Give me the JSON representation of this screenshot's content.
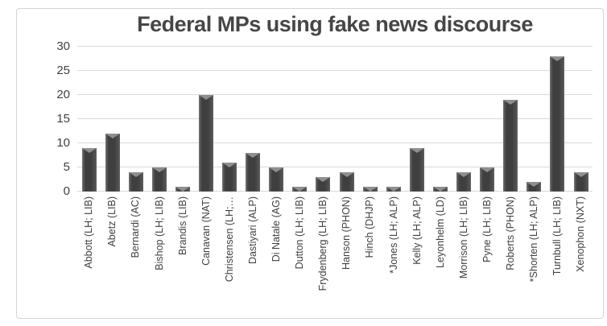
{
  "chart_data": {
    "type": "bar",
    "title": "Federal MPs using fake news discourse",
    "categories": [
      "Abbott (LH; LIB)",
      "Abetz (LIB)",
      "Bernardi (AC)",
      "Bishop (LH; LIB)",
      "Brandis (LIB)",
      "Canavan (NAT)",
      "Christensen (LH;…",
      "Dastiyari (ALP)",
      "Di Natale (AG)",
      "Dutton (LH; LIB)",
      "Frydenberg (LH; LIB)",
      "Hanson (PHON)",
      "Hinch (DHJP)",
      "*Jones (LH; ALP)",
      "Kelly (LH; ALP)",
      "Leyonhelm (LD)",
      "Morrison (LH; LIB)",
      "Pyne (LH; LIB)",
      "Roberts (PHON)",
      "*Shorten (LH; ALP)",
      "Turnbull (LH; LIB)",
      "Xenophon (NXT)"
    ],
    "values": [
      9,
      12,
      4,
      5,
      1,
      20,
      6,
      8,
      5,
      1,
      3,
      4,
      1,
      1,
      9,
      1,
      4,
      5,
      19,
      2,
      28,
      4
    ],
    "xlabel": "",
    "ylabel": "",
    "ylim": [
      0,
      30
    ],
    "yticks": [
      0,
      5,
      10,
      15,
      20,
      25,
      30
    ],
    "grid": true,
    "legend_position": "none",
    "colors": {
      "bar_body": "#3f3f3f",
      "bar_edge_left": "#6e6e6e",
      "bar_edge_right": "#595959",
      "bar_bevel": "#8f8f8f",
      "gridline": "#d9d9d9",
      "text": "#404040",
      "title_text": "#464646",
      "frame_border": "#d4d4d4",
      "background": "#ffffff"
    }
  }
}
